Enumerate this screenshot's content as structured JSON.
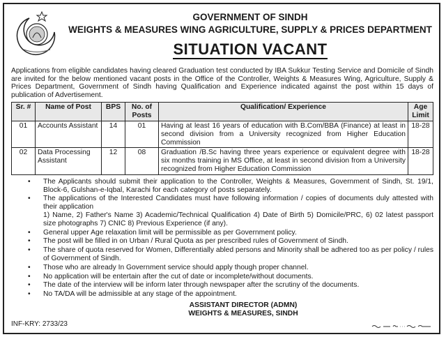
{
  "header": {
    "line1": "GOVERNMENT OF SINDH",
    "line2": "WEIGHTS & MEASURES WING AGRICULTURE, SUPPLY & PRICES DEPARTMENT",
    "title": "SITUATION VACANT",
    "logo_icon": "government-of-sindh-emblem"
  },
  "intro": "Applications from eligible candidates having cleared Graduation test conducted by IBA Sukkur Testing Service and Domicile of Sindh are invited for the below mentioned vacant posts in the Office of the Controller, Weights & Measures Wing, Agriculture, Supply & Prices Department, Government of Sindh having Qualification and Experience indicated against the post within 15 days of publication of Advertisement.",
  "table": {
    "headers": [
      "Sr. #",
      "Name of Post",
      "BPS",
      "No. of Posts",
      "Qualification/ Experience",
      "Age Limit"
    ],
    "rows": [
      [
        "01",
        "Accounts Assistant",
        "14",
        "01",
        "Having at least 16 years of education with B.Com/BBA (Finance) at least in second division from a University recognized from Higher Education Commission",
        "18-28"
      ],
      [
        "02",
        "Data Processing Assistant",
        "12",
        "08",
        "Graduation /B.Sc having three years experience or equivalent degree with six months training in MS Office, at least in second division from a University recognized from Higher Education Commission",
        "18-28"
      ]
    ]
  },
  "bullets": [
    "The Applicants should submit their application to the Controller, Weights & Measures, Government of Sindh, St. 19/1, Block-6, Gulshan-e-Iqbal, Karachi for each category of posts separately.",
    "The applications of the Interested Candidates must have following information / copies of documents duly attested with their application",
    "General upper Age relaxation limit will be permissible as per Government policy.",
    "The post will be filled in on Urban / Rural Quota as per prescribed rules of Government of Sindh.",
    "The share of quota reserved for Women, Differentially abled persons and Minority shall be adhered too as per policy / rules of Government of Sindh.",
    "Those who are already In Government service should apply though proper channel.",
    "No application will be entertain after the cut of date or incomplete/without documents.",
    "The date of the interview will be inform later through newspaper after the scrutiny of the documents.",
    "No TA/DA will be admissible at any stage of the appointment."
  ],
  "documents_list": "1) Name, 2) Father's Name 3) Academic/Technical Qualification 4) Date of Birth 5) Domicile/PRC, 6) 02 latest passport size photographs 7) CNIC 8) Previous Experience (if any).",
  "signature": {
    "line1": "ASSISTANT DIRECTOR (ADMN)",
    "line2": "WEIGHTS & MEASURES, SINDH"
  },
  "reference": "INF-KRY: 2733/23"
}
